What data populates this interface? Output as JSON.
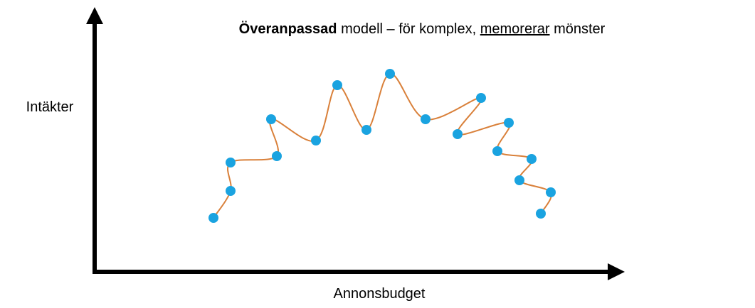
{
  "title": {
    "bold": "Överanpassad",
    "middle": " modell – för komplex, ",
    "underlined": "memorerar",
    "end": " mönster"
  },
  "y_axis_label": "Intäkter",
  "x_axis_label": "Annonsbudget"
}
